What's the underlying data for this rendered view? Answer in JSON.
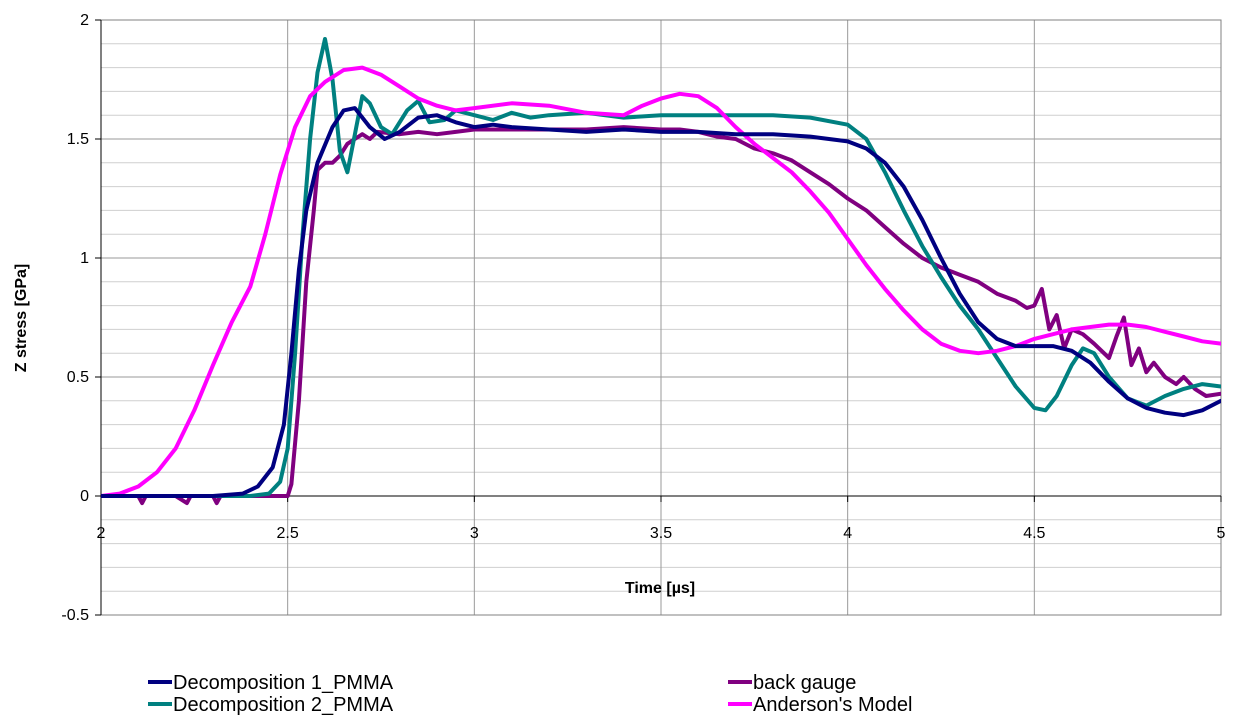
{
  "chart_data": {
    "type": "line",
    "title": "",
    "xlabel": "Time [µs]",
    "ylabel": "Z stress [GPa]",
    "xlim": [
      2,
      5
    ],
    "ylim": [
      -0.5,
      2
    ],
    "x_ticks": [
      2,
      2.5,
      3,
      3.5,
      4,
      4.5,
      5
    ],
    "x_tick_labels": [
      "2",
      "2.5",
      "3",
      "3.5",
      "4",
      "4.5",
      "5"
    ],
    "y_ticks": [
      -0.5,
      0,
      0.5,
      1,
      1.5,
      2
    ],
    "y_tick_labels": [
      "-0.5",
      "0",
      "0.5",
      "1",
      "1.5",
      "2"
    ],
    "grid": true,
    "legend_position": "bottom",
    "series": [
      {
        "name": "Decomposition 1_PMMA",
        "color": "#000080",
        "points": [
          [
            2,
            0
          ],
          [
            2.3,
            0
          ],
          [
            2.38,
            0.01
          ],
          [
            2.42,
            0.04
          ],
          [
            2.46,
            0.12
          ],
          [
            2.49,
            0.3
          ],
          [
            2.51,
            0.6
          ],
          [
            2.53,
            0.95
          ],
          [
            2.55,
            1.2
          ],
          [
            2.58,
            1.4
          ],
          [
            2.62,
            1.55
          ],
          [
            2.65,
            1.62
          ],
          [
            2.68,
            1.63
          ],
          [
            2.72,
            1.55
          ],
          [
            2.76,
            1.5
          ],
          [
            2.8,
            1.53
          ],
          [
            2.85,
            1.59
          ],
          [
            2.9,
            1.6
          ],
          [
            2.95,
            1.57
          ],
          [
            3.0,
            1.55
          ],
          [
            3.05,
            1.56
          ],
          [
            3.1,
            1.55
          ],
          [
            3.2,
            1.54
          ],
          [
            3.3,
            1.53
          ],
          [
            3.4,
            1.54
          ],
          [
            3.5,
            1.53
          ],
          [
            3.6,
            1.53
          ],
          [
            3.7,
            1.52
          ],
          [
            3.8,
            1.52
          ],
          [
            3.9,
            1.51
          ],
          [
            4.0,
            1.49
          ],
          [
            4.05,
            1.46
          ],
          [
            4.1,
            1.4
          ],
          [
            4.15,
            1.3
          ],
          [
            4.2,
            1.16
          ],
          [
            4.25,
            1.0
          ],
          [
            4.3,
            0.85
          ],
          [
            4.35,
            0.73
          ],
          [
            4.4,
            0.66
          ],
          [
            4.45,
            0.63
          ],
          [
            4.5,
            0.63
          ],
          [
            4.55,
            0.63
          ],
          [
            4.6,
            0.61
          ],
          [
            4.65,
            0.56
          ],
          [
            4.7,
            0.48
          ],
          [
            4.75,
            0.41
          ],
          [
            4.8,
            0.37
          ],
          [
            4.85,
            0.35
          ],
          [
            4.9,
            0.34
          ],
          [
            4.95,
            0.36
          ],
          [
            5.0,
            0.4
          ]
        ]
      },
      {
        "name": "back gauge",
        "color": "#800080",
        "points": [
          [
            2,
            0
          ],
          [
            2.1,
            0
          ],
          [
            2.11,
            -0.03
          ],
          [
            2.12,
            0
          ],
          [
            2.2,
            0
          ],
          [
            2.23,
            -0.03
          ],
          [
            2.24,
            0
          ],
          [
            2.3,
            0
          ],
          [
            2.31,
            -0.03
          ],
          [
            2.32,
            0
          ],
          [
            2.45,
            0
          ],
          [
            2.5,
            0
          ],
          [
            2.51,
            0.05
          ],
          [
            2.53,
            0.4
          ],
          [
            2.55,
            0.9
          ],
          [
            2.57,
            1.2
          ],
          [
            2.58,
            1.37
          ],
          [
            2.6,
            1.4
          ],
          [
            2.62,
            1.4
          ],
          [
            2.64,
            1.43
          ],
          [
            2.66,
            1.48
          ],
          [
            2.68,
            1.5
          ],
          [
            2.7,
            1.52
          ],
          [
            2.72,
            1.5
          ],
          [
            2.74,
            1.53
          ],
          [
            2.8,
            1.52
          ],
          [
            2.85,
            1.53
          ],
          [
            2.9,
            1.52
          ],
          [
            2.95,
            1.53
          ],
          [
            3.0,
            1.54
          ],
          [
            3.1,
            1.54
          ],
          [
            3.2,
            1.54
          ],
          [
            3.3,
            1.54
          ],
          [
            3.4,
            1.55
          ],
          [
            3.5,
            1.54
          ],
          [
            3.55,
            1.54
          ],
          [
            3.6,
            1.53
          ],
          [
            3.65,
            1.51
          ],
          [
            3.7,
            1.5
          ],
          [
            3.75,
            1.46
          ],
          [
            3.8,
            1.44
          ],
          [
            3.85,
            1.41
          ],
          [
            3.9,
            1.36
          ],
          [
            3.95,
            1.31
          ],
          [
            4.0,
            1.25
          ],
          [
            4.05,
            1.2
          ],
          [
            4.1,
            1.13
          ],
          [
            4.15,
            1.06
          ],
          [
            4.2,
            1.0
          ],
          [
            4.25,
            0.96
          ],
          [
            4.3,
            0.93
          ],
          [
            4.35,
            0.9
          ],
          [
            4.4,
            0.85
          ],
          [
            4.45,
            0.82
          ],
          [
            4.48,
            0.79
          ],
          [
            4.5,
            0.8
          ],
          [
            4.52,
            0.87
          ],
          [
            4.54,
            0.7
          ],
          [
            4.56,
            0.76
          ],
          [
            4.58,
            0.62
          ],
          [
            4.6,
            0.7
          ],
          [
            4.63,
            0.68
          ],
          [
            4.66,
            0.64
          ],
          [
            4.7,
            0.58
          ],
          [
            4.72,
            0.67
          ],
          [
            4.74,
            0.75
          ],
          [
            4.76,
            0.55
          ],
          [
            4.78,
            0.62
          ],
          [
            4.8,
            0.52
          ],
          [
            4.82,
            0.56
          ],
          [
            4.85,
            0.5
          ],
          [
            4.88,
            0.47
          ],
          [
            4.9,
            0.5
          ],
          [
            4.93,
            0.45
          ],
          [
            4.96,
            0.42
          ],
          [
            5.0,
            0.43
          ]
        ]
      },
      {
        "name": "Decomposition 2_PMMA",
        "color": "#008080",
        "points": [
          [
            2,
            0
          ],
          [
            2.4,
            0
          ],
          [
            2.45,
            0.01
          ],
          [
            2.48,
            0.06
          ],
          [
            2.5,
            0.2
          ],
          [
            2.52,
            0.6
          ],
          [
            2.54,
            1.1
          ],
          [
            2.56,
            1.5
          ],
          [
            2.58,
            1.78
          ],
          [
            2.6,
            1.92
          ],
          [
            2.62,
            1.75
          ],
          [
            2.64,
            1.45
          ],
          [
            2.66,
            1.36
          ],
          [
            2.68,
            1.52
          ],
          [
            2.7,
            1.68
          ],
          [
            2.72,
            1.65
          ],
          [
            2.75,
            1.55
          ],
          [
            2.78,
            1.52
          ],
          [
            2.82,
            1.62
          ],
          [
            2.85,
            1.66
          ],
          [
            2.88,
            1.57
          ],
          [
            2.92,
            1.58
          ],
          [
            2.95,
            1.62
          ],
          [
            3.0,
            1.6
          ],
          [
            3.05,
            1.58
          ],
          [
            3.1,
            1.61
          ],
          [
            3.15,
            1.59
          ],
          [
            3.2,
            1.6
          ],
          [
            3.3,
            1.61
          ],
          [
            3.4,
            1.59
          ],
          [
            3.5,
            1.6
          ],
          [
            3.6,
            1.6
          ],
          [
            3.7,
            1.6
          ],
          [
            3.8,
            1.6
          ],
          [
            3.9,
            1.59
          ],
          [
            4.0,
            1.56
          ],
          [
            4.05,
            1.5
          ],
          [
            4.1,
            1.36
          ],
          [
            4.15,
            1.2
          ],
          [
            4.2,
            1.05
          ],
          [
            4.25,
            0.92
          ],
          [
            4.3,
            0.8
          ],
          [
            4.35,
            0.7
          ],
          [
            4.4,
            0.58
          ],
          [
            4.45,
            0.46
          ],
          [
            4.5,
            0.37
          ],
          [
            4.53,
            0.36
          ],
          [
            4.56,
            0.42
          ],
          [
            4.6,
            0.55
          ],
          [
            4.63,
            0.62
          ],
          [
            4.66,
            0.6
          ],
          [
            4.7,
            0.5
          ],
          [
            4.75,
            0.41
          ],
          [
            4.8,
            0.38
          ],
          [
            4.85,
            0.42
          ],
          [
            4.9,
            0.45
          ],
          [
            4.95,
            0.47
          ],
          [
            5.0,
            0.46
          ]
        ]
      },
      {
        "name": "Anderson's Model",
        "color": "#FF00FF",
        "points": [
          [
            2,
            0
          ],
          [
            2.05,
            0.01
          ],
          [
            2.1,
            0.04
          ],
          [
            2.15,
            0.1
          ],
          [
            2.2,
            0.2
          ],
          [
            2.25,
            0.36
          ],
          [
            2.3,
            0.55
          ],
          [
            2.35,
            0.73
          ],
          [
            2.4,
            0.88
          ],
          [
            2.44,
            1.1
          ],
          [
            2.48,
            1.35
          ],
          [
            2.52,
            1.55
          ],
          [
            2.56,
            1.68
          ],
          [
            2.6,
            1.74
          ],
          [
            2.65,
            1.79
          ],
          [
            2.7,
            1.8
          ],
          [
            2.75,
            1.77
          ],
          [
            2.8,
            1.72
          ],
          [
            2.85,
            1.67
          ],
          [
            2.9,
            1.64
          ],
          [
            2.95,
            1.62
          ],
          [
            3.0,
            1.63
          ],
          [
            3.1,
            1.65
          ],
          [
            3.2,
            1.64
          ],
          [
            3.3,
            1.61
          ],
          [
            3.4,
            1.6
          ],
          [
            3.45,
            1.64
          ],
          [
            3.5,
            1.67
          ],
          [
            3.55,
            1.69
          ],
          [
            3.6,
            1.68
          ],
          [
            3.65,
            1.63
          ],
          [
            3.7,
            1.55
          ],
          [
            3.75,
            1.48
          ],
          [
            3.8,
            1.42
          ],
          [
            3.85,
            1.36
          ],
          [
            3.9,
            1.28
          ],
          [
            3.95,
            1.19
          ],
          [
            4.0,
            1.08
          ],
          [
            4.05,
            0.97
          ],
          [
            4.1,
            0.87
          ],
          [
            4.15,
            0.78
          ],
          [
            4.2,
            0.7
          ],
          [
            4.25,
            0.64
          ],
          [
            4.3,
            0.61
          ],
          [
            4.35,
            0.6
          ],
          [
            4.4,
            0.61
          ],
          [
            4.45,
            0.63
          ],
          [
            4.5,
            0.66
          ],
          [
            4.55,
            0.68
          ],
          [
            4.6,
            0.7
          ],
          [
            4.65,
            0.71
          ],
          [
            4.7,
            0.72
          ],
          [
            4.75,
            0.72
          ],
          [
            4.8,
            0.71
          ],
          [
            4.85,
            0.69
          ],
          [
            4.9,
            0.67
          ],
          [
            4.95,
            0.65
          ],
          [
            5.0,
            0.64
          ]
        ]
      }
    ]
  }
}
